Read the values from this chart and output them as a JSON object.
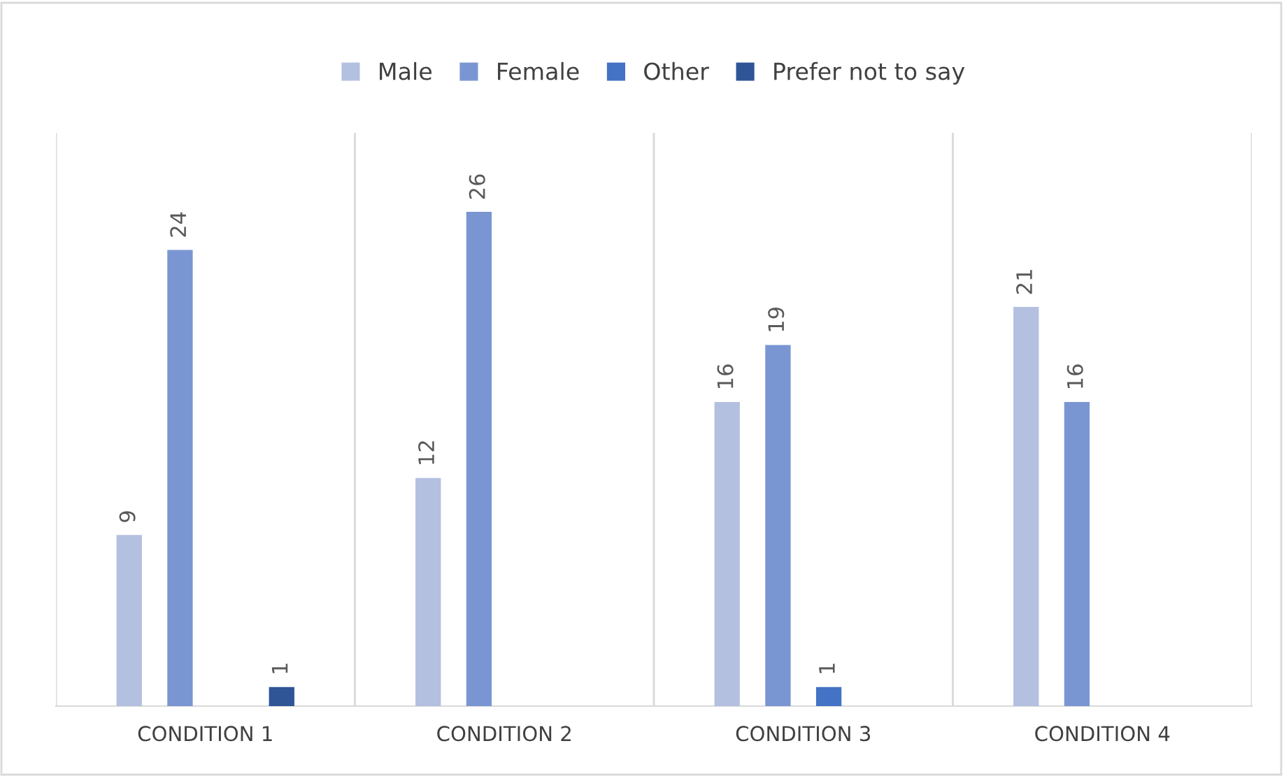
{
  "chart_data": {
    "type": "bar",
    "categories": [
      "CONDITION 1",
      "CONDITION 2",
      "CONDITION 3",
      "CONDITION 4"
    ],
    "series": [
      {
        "name": "Male",
        "color": "#b4c0e0",
        "values": [
          9,
          12,
          16,
          21
        ]
      },
      {
        "name": "Female",
        "color": "#7a96d2",
        "values": [
          24,
          26,
          19,
          16
        ]
      },
      {
        "name": "Other",
        "color": "#4472c4",
        "values": [
          null,
          null,
          1,
          null
        ]
      },
      {
        "name": "Prefer not to say",
        "color": "#2f5597",
        "values": [
          1,
          null,
          null,
          null
        ]
      }
    ],
    "data_labels": true,
    "legend": "top",
    "grid": "x",
    "tick_labels": "x"
  }
}
